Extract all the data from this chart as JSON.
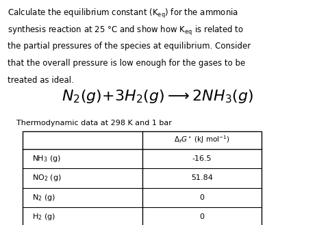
{
  "bg_color": "#f0f0f0",
  "text_color": "#000000",
  "paragraph": "Calculate the equilibrium constant (Kₑⁱ) for the ammonia\nsynthesis reaction at 25 °C and show how Kₑⁱ is related to\nthe partial pressures of the species at equilibrium. Consider\nthat the overall pressure is low enough for the gases to be\ntreated as ideal.",
  "thermo_label": "Thermodynamic data at 298 K and 1 bar",
  "table_species": [
    "NH₃ (g)",
    "NO₂ (g)",
    "N₂ (g)",
    "H₂ (g)"
  ],
  "table_values": [
    "-16.5",
    "51.84",
    "0",
    "0"
  ],
  "table_header": "ΔᴼG° (kJ mol⁻¹)",
  "fig_width": 4.64,
  "fig_height": 3.29,
  "dpi": 100
}
